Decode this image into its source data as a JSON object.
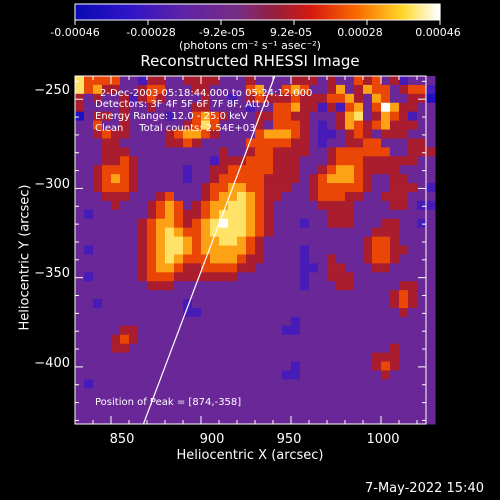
{
  "colorbar": {
    "tick_labels": [
      "-0.00046",
      "-0.00028",
      "-9.2e-05",
      "9.2e-05",
      "0.00028",
      "0.00046"
    ],
    "units": "(photons cm⁻² s⁻¹ asec⁻²)"
  },
  "footer": {
    "date_stamp": "7-May-2022 15:40"
  },
  "chart_data": {
    "type": "heatmap",
    "title": "Reconstructed RHESSI Image",
    "xlabel": "Heliocentric X (arcsec)",
    "ylabel": "Heliocentric Y (arcsec)",
    "xlim": [
      830,
      1025
    ],
    "ylim": [
      -432,
      -237
    ],
    "x_ticks": [
      850,
      900,
      950,
      1000
    ],
    "x_tick_labels": [
      "850",
      "900",
      "950",
      "1000"
    ],
    "y_ticks": [
      -250,
      -300,
      -350,
      -400
    ],
    "y_tick_labels": [
      "−250",
      "−300",
      "−350",
      "−400"
    ],
    "color_range": [
      -0.00046,
      0.00046
    ],
    "colormap": "blue-purple-red-orange-yellow-white",
    "annotations": [
      "2-Dec-2003 05:18:44.000 to 05:24:12.000",
      "Detectors: 3F 4F 5F 6F 7F 8F, Att 0",
      "Energy Range: 12.0 - 25.0 keV",
      "Clean     Total counts: 2.54E+03"
    ],
    "peak_label": "Position of Peak = [874,-358]",
    "peak_position": [
      874,
      -358
    ],
    "limb_line": {
      "x": [
        868,
        941
      ],
      "y": [
        -432,
        -237
      ]
    },
    "grid_step_arcsec": 5,
    "image_rows": [
      "GEEEECCBDDCCDDDDCCCDCCCCDDDCDCCEDECDBCCC",
      "GEFDDCCDEECCCDDCCCCEFCCEFECCDFCDFEECDEEB",
      "DCDCCDBDEDCCCCDCCBCDEDDDEDDDEEFDCFECCDDA",
      "DCCCCDCCDCCCCDDCCCCBCCEEFDDBDBEFCEHFDDCC",
      "ACDDCDCCCCBCCEFEDCCCDDEEDDCCCDFGCDFEDBCC",
      "CCECCDCCCCCCDEGECCCCDCEEEDCBCDFEDEFDDDCC",
      "CCDEDDCCCCDEFFEDCCCCEFFFEDCBBCDEDCDDDCCC",
      "CCCDDCCCCCDDEDCCCCCEEEEEDDCBCCDDEECCCDDC",
      "CCCDDDCCCCCCCCCCDCCDEEDDDDCCDEEEEEECCDDD",
      "CCCDDEDCCCCCCCCBDDDEEEDDDCCCDEEEDDDDDDCC",
      "CCDEEEDCCCCCBCCDDEEEEEDDDCCDEFFEDDDDCCCC",
      "CCDEFEDCCCCCBCCDEEEEEDDDDCDEFFFEDCCDDCCC",
      "CCDEEEDCCCCCCCDEEFFEEDDDCCDEEEEEDCCDDDCB",
      "CCCDDDCCCDECCCDEFFGFEDDCCCDEEEDDCCDDDCCC",
      "CCCCDCCCDEFECDEFFGGFEDCCCCCDDDDCCCCDDCBB",
      "CBCCCCCCDEFEDDEFGGGFEDCCCCCCDDDCCCCCCCCC",
      "CCCCCCCDEFFEDEFGHGGFEDCCCBCCDDDCCCDDCCBC",
      "CCCCCCCDEFGFEEFGGGGFEDCCCCCCCCCCCDDDCCCC",
      "CCCCCCCDEFGGFEFFGGFEDCCCCCCCCCCCDEEDCCCC",
      "CBCCCCCDEFGGFEFFFFFEDCCCCBCCCCCCDEEDDCCC",
      "CCCCCCCDEFGFEEEFFFEDDCCCCBCCDCCCDEEDCCCC",
      "CCCCCCCDEFFEDDEEEEDDCCCCCBBCDDCCCDDCCCCC",
      "CBCCCCCDEEEDDDDDDDCCCCCCCBCCDDDCCCCCCCCC",
      "CCCCCCCCDDDCCCCCCCCCCCCCCBCCCDDCCCCCDDCC",
      "CCCCCCCCCCCCCCCCCCCCCCCCCCCCCCCCCCCDEDCC",
      "CCBCCCCCCCCCBCCCCCCCCCCCCCCCCCCCCCCDEDCC",
      "CCCCCCCCCCCCBBCCCCCCCCCCCCCCCCCCCCCCDCCC",
      "CCCCCCCCCCCCCCCCCCCCCCCCBCCCCCCCCCCCCCCC",
      "CCCCCDDCCCCCCCCCCCCCCCCBBCCCCCCCCCCCCCCC",
      "CCCCDEDCCCCCCCCCCCCCCCCCCCCCCCCCCCCCCCCC",
      "CCCCDDCCCCCCCCCCCCCCCCCCCCCCCCCCCCCDCCCC",
      "CCCCCCCCCCCCCCCCCCCCCCCCCCCCCCCCCDDDCCCC",
      "CCCCCCCCCCCCCCCCCCCCCCCCBCCCCCCCCDEDCCCC",
      "CCCCCCCCCCCCCCCCCCCCCCCBBCCCCCCCCCDCCCCC",
      "CBCCCCCCCCCCCCCCCCCCCCCCCCCCCCCCCCCCCCCC",
      "CCCCCCCCCCCCCCCCCCCCCCCCCCCCCCCCCCCCCCCC",
      "CCCCCCCCCCCCCCCCCCCCCCCCCCCCCCCCCCCCCCCC",
      "CCCCCCCCCCCCCCCCCCCCCCCCCCCCCCCCCCCCCCCC",
      "CCCCCCCCCCCCCCCCCCCCCCCCCCCCCCCCCCCCCCCC"
    ]
  }
}
